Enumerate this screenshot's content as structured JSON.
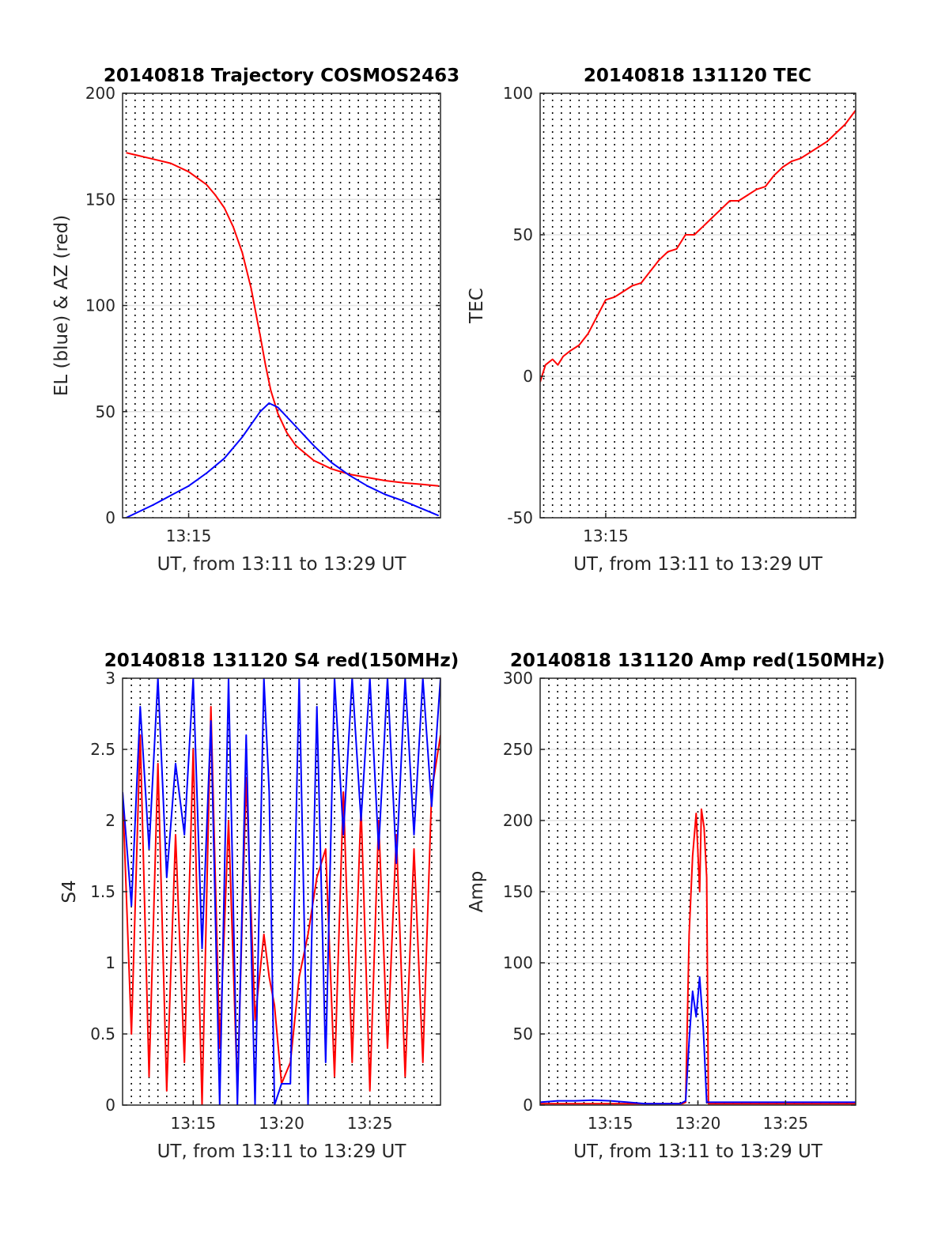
{
  "figure": {
    "background": "#ffffff",
    "time_labels": [
      "13:15",
      "13:20",
      "13:25"
    ]
  },
  "chart_data": [
    {
      "id": "trajectory",
      "type": "line",
      "title": "20140818 Trajectory COSMOS2463",
      "xlabel": "UT, from 13:11 to 13:29 UT",
      "ylabel": "EL (blue) & AZ (red)",
      "xlim_minutes": [
        11.3,
        29.1
      ],
      "ylim": [
        0,
        200
      ],
      "yticks": [
        0,
        50,
        100,
        150,
        200
      ],
      "xtick_labels": [
        "13:15"
      ],
      "xtick_minutes": [
        15
      ],
      "grid": true,
      "series": [
        {
          "color": "#ff0000",
          "x_minutes": [
            11.5,
            12,
            13,
            14,
            15,
            16,
            16.5,
            17,
            17.5,
            18,
            18.5,
            19,
            19.3,
            19.6,
            20,
            20.5,
            21,
            22,
            23,
            24,
            25,
            26,
            27,
            28,
            29
          ],
          "values": [
            172,
            171,
            169,
            167,
            163,
            157,
            152,
            146,
            137,
            125,
            108,
            86,
            72,
            60,
            49,
            40,
            34,
            27,
            23,
            20.5,
            19,
            17.5,
            16.5,
            15.8,
            15
          ]
        },
        {
          "color": "#0000ff",
          "x_minutes": [
            11.5,
            12,
            13,
            14,
            15,
            16,
            17,
            18,
            18.5,
            19,
            19.5,
            20,
            21,
            22,
            23,
            24,
            25,
            26,
            27,
            28,
            29
          ],
          "values": [
            0,
            2,
            6,
            10.5,
            15,
            21,
            28,
            38,
            44,
            50,
            54,
            52,
            43,
            34,
            26,
            20,
            15,
            11,
            8,
            4.5,
            1
          ]
        }
      ]
    },
    {
      "id": "tec",
      "type": "line",
      "title": "20140818 131120 TEC",
      "xlabel": "UT, from 13:11 to 13:29 UT",
      "ylabel": "TEC",
      "xlim_minutes": [
        11.3,
        29.1
      ],
      "ylim": [
        -50,
        100
      ],
      "yticks": [
        -50,
        0,
        50,
        100
      ],
      "xtick_labels": [
        "13:15"
      ],
      "xtick_minutes": [
        15
      ],
      "grid": true,
      "series": [
        {
          "color": "#ff0000",
          "x_minutes": [
            11.3,
            11.6,
            12,
            12.3,
            12.6,
            13,
            13.5,
            14,
            14.5,
            15,
            15.5,
            16,
            16.5,
            17,
            17.5,
            18,
            18.5,
            19,
            19.5,
            20,
            20.5,
            21,
            21.5,
            22,
            22.5,
            23,
            23.5,
            24,
            24.5,
            25,
            25.5,
            26,
            26.5,
            27,
            27.5,
            28,
            28.5,
            29.1
          ],
          "values": [
            -2,
            4,
            6,
            4,
            7,
            9,
            11,
            15,
            21,
            27,
            28,
            30,
            32,
            33,
            37,
            41,
            44,
            45,
            50,
            50,
            53,
            56,
            59,
            62,
            62,
            64,
            66,
            67,
            71,
            74,
            76,
            77,
            79,
            81,
            83,
            86,
            89,
            94
          ]
        }
      ]
    },
    {
      "id": "s4",
      "type": "line",
      "title": "20140818 131120 S4 red(150MHz)",
      "xlabel": "UT, from 13:11 to 13:29 UT",
      "ylabel": "S4",
      "xlim_minutes": [
        11.0,
        29.0
      ],
      "ylim": [
        0,
        3
      ],
      "yticks": [
        0,
        0.5,
        1,
        1.5,
        2,
        2.5,
        3
      ],
      "xtick_labels": [
        "13:15",
        "13:20",
        "13:25"
      ],
      "xtick_minutes": [
        15,
        20,
        25
      ],
      "grid": true,
      "series": [
        {
          "color": "#ff0000",
          "x_minutes": [
            11,
            11.5,
            12,
            12.5,
            13,
            13.5,
            14,
            14.5,
            15,
            15.5,
            16,
            16.5,
            17,
            17.5,
            18,
            18.5,
            19,
            19.3,
            19.6,
            20,
            20.5,
            21,
            21.5,
            22,
            22.5,
            23,
            23.5,
            24,
            24.5,
            25,
            25.5,
            26,
            26.5,
            27,
            27.5,
            28,
            28.5,
            29
          ],
          "values": [
            2.2,
            0.5,
            2.6,
            0.2,
            2.4,
            0.1,
            1.9,
            0.3,
            2.5,
            0.0,
            2.8,
            0.4,
            2.0,
            0.1,
            2.3,
            0.6,
            1.2,
            0.9,
            0.7,
            0.15,
            0.3,
            0.9,
            1.2,
            1.6,
            1.8,
            0.2,
            2.2,
            0.3,
            2.1,
            0.1,
            2.0,
            0.4,
            1.9,
            0.2,
            1.8,
            0.3,
            2.2,
            2.6
          ]
        },
        {
          "color": "#0000ff",
          "x_minutes": [
            11,
            11.5,
            12,
            12.5,
            13,
            13.5,
            14,
            14.5,
            15,
            15.5,
            16,
            16.5,
            17,
            17.5,
            18,
            18.5,
            19,
            19.3,
            19.6,
            20,
            20.5,
            21,
            21.5,
            22,
            22.5,
            23,
            23.5,
            24,
            24.5,
            25,
            25.5,
            26,
            26.5,
            27,
            27.5,
            28,
            28.5,
            29
          ],
          "values": [
            2.2,
            1.4,
            2.8,
            1.8,
            3.0,
            1.6,
            2.4,
            1.9,
            3.0,
            1.1,
            2.7,
            0.0,
            3.0,
            0.0,
            2.6,
            0.0,
            3.0,
            2.2,
            0.0,
            0.15,
            0.15,
            3.0,
            0.0,
            2.8,
            0.3,
            3.0,
            1.9,
            3.0,
            2.0,
            3.0,
            1.8,
            3.0,
            1.7,
            3.0,
            1.9,
            3.0,
            2.1,
            3.0
          ]
        }
      ]
    },
    {
      "id": "amp",
      "type": "line",
      "title": "20140818 131120 Amp red(150MHz)",
      "xlabel": "UT, from 13:11 to 13:29 UT",
      "ylabel": "Amp",
      "xlim_minutes": [
        11.0,
        29.0
      ],
      "ylim": [
        0,
        300
      ],
      "yticks": [
        0,
        50,
        100,
        150,
        200,
        250,
        300
      ],
      "xtick_labels": [
        "13:15",
        "13:20",
        "13:25"
      ],
      "xtick_minutes": [
        15,
        20,
        25
      ],
      "grid": true,
      "series": [
        {
          "color": "#ff0000",
          "x_minutes": [
            11,
            19.1,
            19.3,
            19.5,
            19.7,
            19.9,
            20.1,
            20.2,
            20.35,
            20.5,
            20.6,
            29
          ],
          "values": [
            1,
            1,
            2,
            120,
            175,
            205,
            150,
            208,
            195,
            160,
            1,
            1
          ]
        },
        {
          "color": "#0000ff",
          "x_minutes": [
            11,
            12,
            13,
            14,
            15,
            16,
            17,
            18,
            19,
            19.3,
            19.5,
            19.7,
            19.9,
            20.1,
            20.3,
            20.5,
            21,
            22,
            23,
            24,
            25,
            26,
            27,
            28,
            29
          ],
          "values": [
            2,
            3,
            3,
            3.5,
            3,
            2,
            1,
            1,
            1,
            3,
            45,
            80,
            62,
            90,
            55,
            2,
            2,
            2,
            2,
            2,
            2,
            2,
            2,
            2,
            2
          ]
        }
      ]
    }
  ]
}
